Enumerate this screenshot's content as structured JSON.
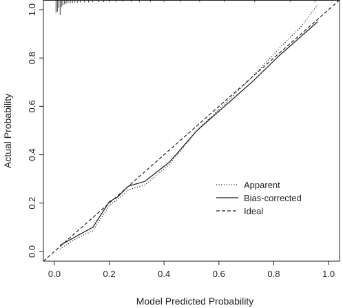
{
  "chart_data": {
    "type": "line",
    "xlabel": "Model Predicted Probability",
    "ylabel": "Actual Probability",
    "xlim": [
      -0.04,
      1.04
    ],
    "ylim": [
      -0.04,
      1.04
    ],
    "xticks": [
      0.0,
      0.2,
      0.4,
      0.6,
      0.8,
      1.0
    ],
    "xtick_labels": [
      "0.0",
      "0.2",
      "0.4",
      "0.6",
      "0.8",
      "1.0"
    ],
    "yticks": [
      0.0,
      0.2,
      0.4,
      0.6,
      0.8,
      1.0
    ],
    "ytick_labels": [
      "0.0",
      "0.2",
      "0.4",
      "0.6",
      "0.8",
      "1.0"
    ],
    "grid": false,
    "legend_position": "bottom-right",
    "series": [
      {
        "name": "Apparent",
        "style": "dotted",
        "x": [
          0.02,
          0.06,
          0.1,
          0.14,
          0.2,
          0.23,
          0.27,
          0.33,
          0.42,
          0.52,
          0.62,
          0.72,
          0.82,
          0.9,
          0.96
        ],
        "y": [
          0.01,
          0.04,
          0.065,
          0.085,
          0.19,
          0.215,
          0.255,
          0.275,
          0.36,
          0.5,
          0.61,
          0.72,
          0.84,
          0.93,
          1.02
        ]
      },
      {
        "name": "Bias-corrected",
        "style": "solid",
        "x": [
          0.02,
          0.06,
          0.1,
          0.14,
          0.2,
          0.23,
          0.27,
          0.33,
          0.42,
          0.52,
          0.62,
          0.72,
          0.82,
          0.9,
          0.96
        ],
        "y": [
          0.025,
          0.05,
          0.075,
          0.1,
          0.205,
          0.225,
          0.27,
          0.29,
          0.37,
          0.5,
          0.6,
          0.7,
          0.81,
          0.89,
          0.95
        ]
      },
      {
        "name": "Ideal",
        "style": "dashed",
        "x": [
          -0.04,
          1.04
        ],
        "y": [
          -0.04,
          1.04
        ]
      }
    ],
    "rug": {
      "x": [
        0.006,
        0.011,
        0.016,
        0.021,
        0.026,
        0.031,
        0.037,
        0.043,
        0.05,
        0.058,
        0.066,
        0.075,
        0.085,
        0.095,
        0.11,
        0.125,
        0.14,
        0.16,
        0.18,
        0.2,
        0.225,
        0.25,
        0.28,
        0.31,
        0.35,
        0.4,
        0.46,
        0.53,
        0.62,
        0.73,
        0.86,
        0.95
      ],
      "len": [
        0.05,
        0.045,
        0.03,
        0.06,
        0.025,
        0.02,
        0.015,
        0.012,
        0.01,
        0.01,
        0.009,
        0.008,
        0.008,
        0.007,
        0.007,
        0.007,
        0.006,
        0.006,
        0.006,
        0.006,
        0.006,
        0.005,
        0.005,
        0.005,
        0.005,
        0.005,
        0.005,
        0.005,
        0.005,
        0.005,
        0.005,
        0.005
      ]
    }
  }
}
